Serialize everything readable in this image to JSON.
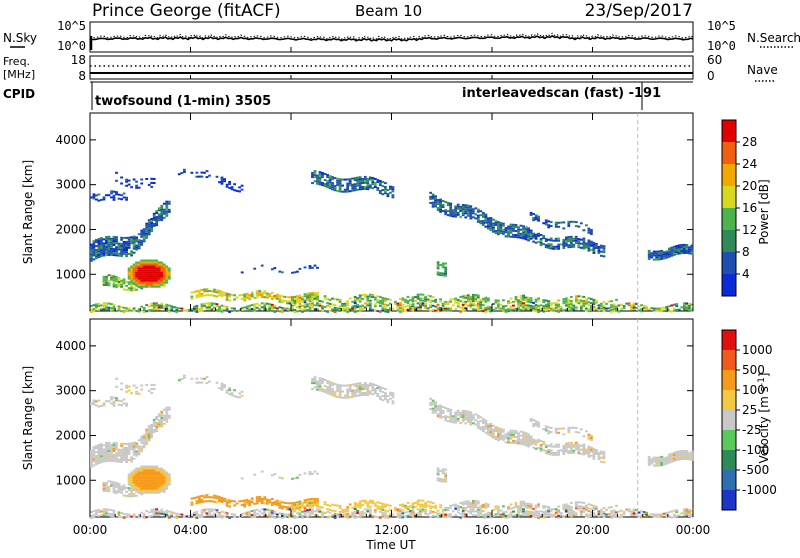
{
  "header": {
    "station": "Prince George (fitACF)",
    "beam": "Beam 10",
    "date": "23/Sep/2017"
  },
  "strip_nsky": {
    "left_label": "N.Sky",
    "right_label": "N.Search",
    "left_ticks": [
      "10^5",
      "10^0"
    ],
    "right_ticks": [
      "10^5",
      "10^0"
    ]
  },
  "strip_freq": {
    "left_label_1": "Freq.",
    "left_label_2": "[MHz]",
    "right_label": "Nave",
    "left_ticks": [
      "18",
      "8"
    ],
    "right_ticks": [
      "60",
      "0"
    ]
  },
  "strip_cpid": {
    "label": "CPID",
    "mode_1": "twofsound (1-min) 3505",
    "mode_2": "interleavedscan (fast) -191"
  },
  "chart_data": [
    {
      "type": "heatmap",
      "title": "Power",
      "ylabel": "Slant Range [km]",
      "xlabel": "",
      "x_ticks": [
        "00:00",
        "04:00",
        "08:00",
        "12:00",
        "16:00",
        "20:00",
        "00:00"
      ],
      "y_ticks": [
        1000,
        2000,
        3000,
        4000
      ],
      "ylim": [
        180,
        4600
      ],
      "xlim_hours": [
        0,
        24
      ],
      "colorbar_label": "Power [dB]",
      "colorbar_ticks": [
        "4",
        "8",
        "12",
        "16",
        "20",
        "24",
        "28"
      ],
      "colorbar_colors": [
        "#0a2bd6",
        "#1e4fb0",
        "#2e8b57",
        "#4db34d",
        "#d8d820",
        "#f2a800",
        "#f06010",
        "#e00000"
      ]
    },
    {
      "type": "heatmap",
      "title": "Velocity",
      "ylabel": "Slant Range [km]",
      "xlabel": "Time UT",
      "x_ticks": [
        "00:00",
        "04:00",
        "08:00",
        "12:00",
        "16:00",
        "20:00",
        "00:00"
      ],
      "y_ticks": [
        1000,
        2000,
        3000,
        4000
      ],
      "ylim": [
        180,
        4600
      ],
      "xlim_hours": [
        0,
        24
      ],
      "colorbar_label": "Velocity [m s^-1]",
      "colorbar_ticks": [
        "1000",
        "500",
        "100",
        "25",
        "-25",
        "-100",
        "-500",
        "-1000"
      ],
      "colorbar_colors": [
        "#1a35c8",
        "#2d6fb0",
        "#2e8b57",
        "#5ac85a",
        "#c8c8c8",
        "#f5c842",
        "#f59a1a",
        "#f05a1a",
        "#e01010"
      ]
    }
  ],
  "vline_hour": 21.8
}
